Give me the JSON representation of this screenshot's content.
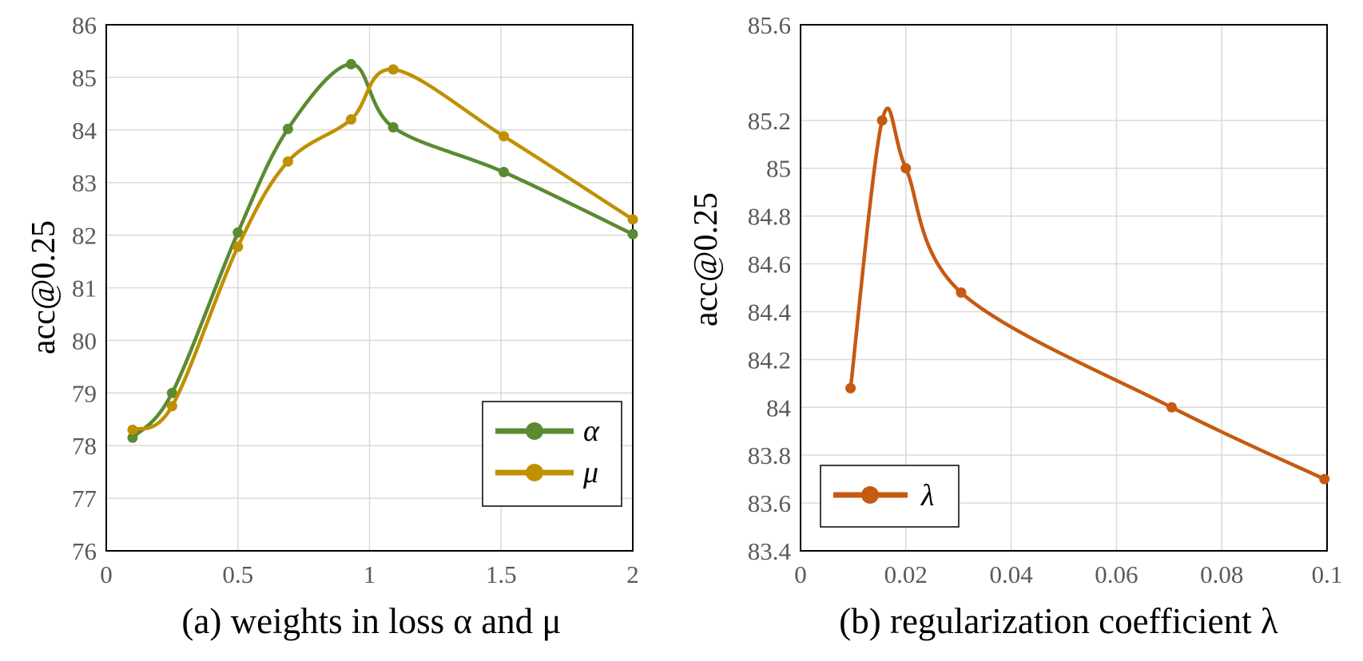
{
  "chart_data": [
    {
      "type": "line",
      "caption": "(a) weights in loss α and μ",
      "ylabel": "acc@0.25",
      "xlabel": "",
      "xlim": [
        0,
        2
      ],
      "ylim": [
        76,
        86
      ],
      "xticks": [
        "0",
        "0.5",
        "1",
        "1.5",
        "2"
      ],
      "yticks": [
        "76",
        "77",
        "78",
        "79",
        "80",
        "81",
        "82",
        "83",
        "84",
        "85",
        "86"
      ],
      "grid": true,
      "legend_position": "bottom-right",
      "series": [
        {
          "name": "α",
          "color": "#5b8a32",
          "x": [
            0.1,
            0.25,
            0.5,
            0.69,
            0.93,
            1.09,
            1.51,
            2.0
          ],
          "y": [
            78.15,
            79.0,
            82.05,
            84.02,
            85.25,
            84.05,
            83.2,
            82.02
          ]
        },
        {
          "name": "μ",
          "color": "#bf9000",
          "x": [
            0.1,
            0.25,
            0.5,
            0.69,
            0.93,
            1.09,
            1.51,
            2.0
          ],
          "y": [
            78.3,
            78.75,
            81.78,
            83.4,
            84.2,
            85.15,
            83.88,
            82.3
          ]
        }
      ]
    },
    {
      "type": "line",
      "caption": "(b) regularization coefficient λ",
      "ylabel": "acc@0.25",
      "xlabel": "",
      "xlim": [
        0,
        0.1
      ],
      "ylim": [
        83.4,
        85.6
      ],
      "xticks": [
        "0",
        "0.02",
        "0.04",
        "0.06",
        "0.08",
        "0.1"
      ],
      "yticks": [
        "83.4",
        "83.6",
        "83.8",
        "84",
        "84.2",
        "84.4",
        "84.6",
        "84.8",
        "85",
        "85.2",
        "85.6"
      ],
      "ytick_values": [
        83.4,
        83.6,
        83.8,
        84.0,
        84.2,
        84.4,
        84.6,
        84.8,
        85.0,
        85.2,
        85.6
      ],
      "grid": true,
      "legend_position": "bottom-left",
      "series": [
        {
          "name": "λ",
          "color": "#c55a11",
          "x": [
            0.0095,
            0.0155,
            0.02,
            0.0305,
            0.0705,
            0.0995
          ],
          "y": [
            84.08,
            85.2,
            85.0,
            84.48,
            84.0,
            83.7
          ]
        }
      ]
    }
  ]
}
